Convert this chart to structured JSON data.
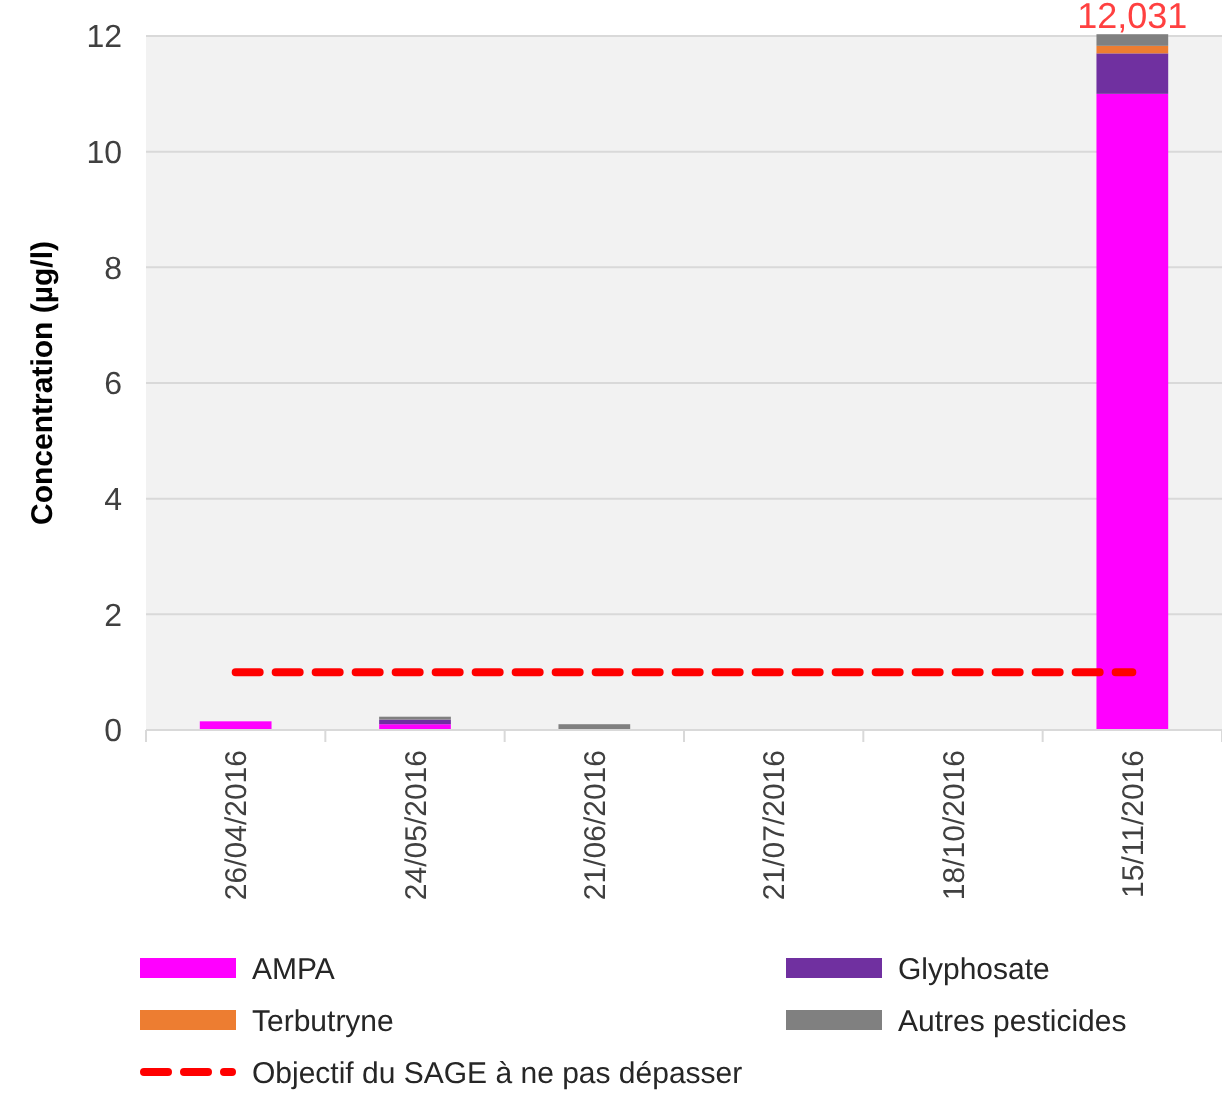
{
  "chart_data": {
    "type": "bar",
    "stacked": true,
    "ylabel": "Concentration (µg/l)",
    "categories": [
      "26/04/2016",
      "24/05/2016",
      "21/06/2016",
      "21/07/2016",
      "18/10/2016",
      "15/11/2016"
    ],
    "series": [
      {
        "name": "AMPA",
        "color": "#ff00ff",
        "values": [
          0.15,
          0.1,
          0,
          0,
          0,
          11
        ]
      },
      {
        "name": "Glyphosate",
        "color": "#7030a0",
        "values": [
          0,
          0.08,
          0,
          0,
          0,
          0.7
        ]
      },
      {
        "name": "Terbutryne",
        "color": "#ed7d31",
        "values": [
          0,
          0,
          0,
          0,
          0,
          0.13
        ]
      },
      {
        "name": "Autres pesticides",
        "color": "#808080",
        "values": [
          0,
          0.05,
          0.1,
          0,
          0,
          0.201
        ]
      }
    ],
    "ylim": [
      0,
      12
    ],
    "yticks": [
      0,
      2,
      4,
      6,
      8,
      10,
      12
    ],
    "grid": "y",
    "legend": "bottom",
    "ref_lines": [
      {
        "axis": "y",
        "value": 1,
        "label": "Objectif du SAGE à ne pas dépasser",
        "color": "#ff0000",
        "line_style": "dashed"
      }
    ],
    "annotations": [
      {
        "text": "12,031",
        "x": "15/11/2016",
        "y": 12.031
      }
    ]
  }
}
